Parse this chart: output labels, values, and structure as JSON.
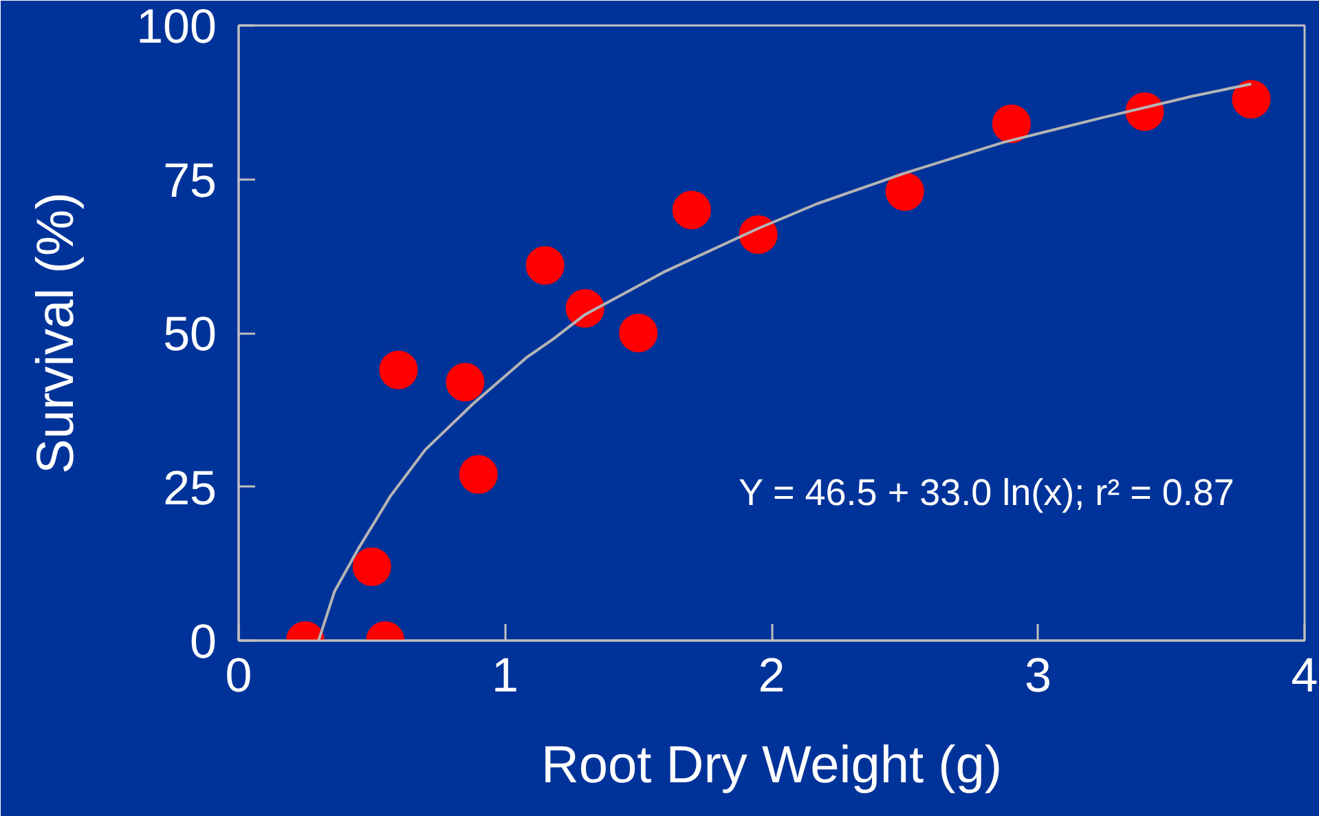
{
  "chart_data": {
    "type": "scatter",
    "xlabel": "Root Dry Weight (g)",
    "ylabel": "Survival (%)",
    "xlim": [
      0,
      4
    ],
    "ylim": [
      0,
      100
    ],
    "xticks": [
      0,
      1,
      2,
      3,
      4
    ],
    "yticks": [
      0,
      25,
      50,
      75,
      100
    ],
    "marker": "circle",
    "annotations": [
      "Y = 46.5 + 33.0 ln(x); r² = 0.87"
    ],
    "series": [
      {
        "color": "#ff0000",
        "x": [
          0.25,
          0.5,
          0.55,
          0.6,
          0.85,
          0.9,
          1.15,
          1.3,
          1.5,
          1.7,
          1.95,
          2.5,
          2.9,
          3.4,
          3.8
        ],
        "values": [
          0,
          12,
          0,
          44,
          42,
          27,
          61,
          54,
          50,
          70,
          66,
          73,
          84,
          86,
          88
        ]
      },
      {
        "type": "line",
        "color": "#b4b4b4",
        "marker": "none",
        "x": [
          0.3,
          0.36,
          0.45,
          0.57,
          0.7,
          0.88,
          1.08,
          1.18,
          1.3,
          1.6,
          1.95,
          2.17,
          2.5,
          2.87,
          3.24,
          3.58,
          3.8
        ],
        "values": [
          0,
          8,
          15,
          23.5,
          31,
          38.5,
          46,
          49,
          53,
          60,
          67,
          71,
          76,
          81,
          85,
          88.5,
          90.5
        ]
      }
    ]
  }
}
